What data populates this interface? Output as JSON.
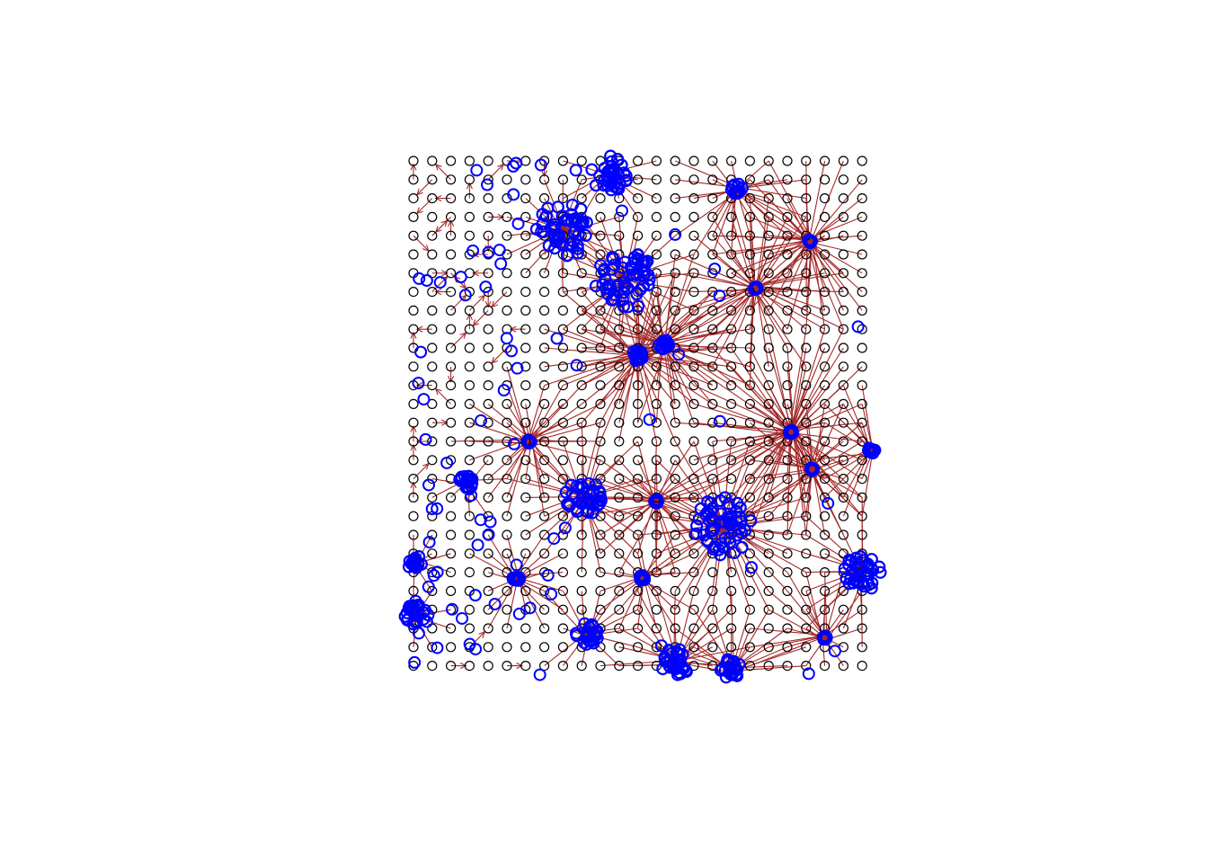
{
  "colors": {
    "background": "#ffffff",
    "grid_point": "#000000",
    "arrow": "#A52A2A",
    "highlight_point": "#0000FF"
  },
  "grid": {
    "cols": 25,
    "rows": 28,
    "marker": "open-circle"
  },
  "hubs": [
    {
      "name": "hub-top-center",
      "col": 10.5,
      "row": 0.7,
      "fan": 3,
      "blobRadius": 1
    },
    {
      "name": "hub-upper-center-left",
      "col": 8,
      "row": 3.7,
      "fan": 3,
      "blobRadius": 1.5
    },
    {
      "name": "hub-center-main",
      "col": 11.3,
      "row": 6.4,
      "fan": 4,
      "blobRadius": 1.6
    },
    {
      "name": "hub-center-lower",
      "col": 12,
      "row": 10.4,
      "fan": 5,
      "blobRadius": 0.3
    },
    {
      "name": "hub-center-arrow",
      "col": 13.4,
      "row": 9.8,
      "fan": 5,
      "blobRadius": 0.3
    },
    {
      "name": "hub-top-right-1",
      "col": 17.3,
      "row": 1.5,
      "fan": 4,
      "blobRadius": 0.3
    },
    {
      "name": "hub-top-right-2",
      "col": 21.2,
      "row": 4.3,
      "fan": 5,
      "blobRadius": 0.1
    },
    {
      "name": "hub-right-mid-1",
      "col": 18.3,
      "row": 6.8,
      "fan": 5,
      "blobRadius": 0.1
    },
    {
      "name": "hub-right-mid-2",
      "col": 20.2,
      "row": 14.5,
      "fan": 6,
      "blobRadius": 0.1
    },
    {
      "name": "hub-right-edge",
      "col": 24.5,
      "row": 15.5,
      "fan": 4,
      "blobRadius": 0.2
    },
    {
      "name": "hub-right-lower",
      "col": 21.3,
      "row": 16.5,
      "fan": 4,
      "blobRadius": 0.1
    },
    {
      "name": "hub-left-mid",
      "col": 6.2,
      "row": 15,
      "fan": 4,
      "blobRadius": 0.1
    },
    {
      "name": "hub-lower-center-left",
      "col": 9.1,
      "row": 18,
      "fan": 4,
      "blobRadius": 1
    },
    {
      "name": "hub-lower-center",
      "col": 13,
      "row": 18.2,
      "fan": 4,
      "blobRadius": 0.1
    },
    {
      "name": "hub-lower-center-right",
      "col": 16.6,
      "row": 19.5,
      "fan": 5,
      "blobRadius": 1.6
    },
    {
      "name": "hub-bottom-right",
      "col": 24,
      "row": 22,
      "fan": 4,
      "blobRadius": 1
    },
    {
      "name": "hub-bottom-center-1",
      "col": 14,
      "row": 26.8,
      "fan": 4,
      "blobRadius": 0.8
    },
    {
      "name": "hub-bottom-center-2",
      "col": 17,
      "row": 27.2,
      "fan": 4,
      "blobRadius": 0.6
    },
    {
      "name": "hub-bottom-right-2",
      "col": 22,
      "row": 25.5,
      "fan": 4,
      "blobRadius": 0.1
    },
    {
      "name": "hub-bottom-left",
      "col": 9.3,
      "row": 25.3,
      "fan": 3,
      "blobRadius": 0.6
    },
    {
      "name": "hub-left-bottom-blob",
      "col": 0.1,
      "row": 24.3,
      "fan": 2,
      "blobRadius": 0.6
    },
    {
      "name": "hub-left-lower-blob",
      "col": 0.1,
      "row": 21.5,
      "fan": 2,
      "blobRadius": 0.4
    },
    {
      "name": "hub-left-mid-blob",
      "col": 2.8,
      "row": 17.2,
      "fan": 2,
      "blobRadius": 0.4
    },
    {
      "name": "hub-lower-left-small",
      "col": 5.5,
      "row": 22.3,
      "fan": 3,
      "blobRadius": 0.2
    },
    {
      "name": "hub-lower-mid-small",
      "col": 12.3,
      "row": 22.3,
      "fan": 3,
      "blobRadius": 0.2
    }
  ]
}
